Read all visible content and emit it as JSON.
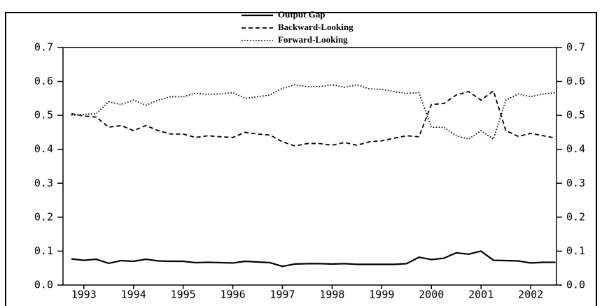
{
  "chart_data": {
    "type": "line",
    "x": [
      1992.75,
      1993,
      1993.25,
      1993.5,
      1993.75,
      1994,
      1994.25,
      1994.5,
      1994.75,
      1995,
      1995.25,
      1995.5,
      1995.75,
      1996,
      1996.25,
      1996.5,
      1996.75,
      1997,
      1997.25,
      1997.5,
      1997.75,
      1998,
      1998.25,
      1998.5,
      1998.75,
      1999,
      1999.25,
      1999.5,
      1999.75,
      2000,
      2000.25,
      2000.5,
      2000.75,
      2001,
      2001.25,
      2001.5,
      2001.75,
      2002,
      2002.25,
      2002.5
    ],
    "series": [
      {
        "name": "Output Gap",
        "color": "#000000",
        "line_style": "solid",
        "values": [
          0.077,
          0.073,
          0.076,
          0.064,
          0.072,
          0.07,
          0.076,
          0.071,
          0.07,
          0.07,
          0.066,
          0.067,
          0.066,
          0.065,
          0.07,
          0.068,
          0.066,
          0.055,
          0.062,
          0.063,
          0.063,
          0.062,
          0.063,
          0.061,
          0.061,
          0.061,
          0.061,
          0.063,
          0.082,
          0.075,
          0.079,
          0.095,
          0.091,
          0.1,
          0.073,
          0.072,
          0.071,
          0.065,
          0.067,
          0.067
        ]
      },
      {
        "name": "Backward-Looking",
        "color": "#000000",
        "line_style": "dashed",
        "values": [
          0.505,
          0.498,
          0.495,
          0.465,
          0.47,
          0.455,
          0.47,
          0.455,
          0.445,
          0.445,
          0.435,
          0.44,
          0.437,
          0.435,
          0.45,
          0.445,
          0.442,
          0.422,
          0.41,
          0.417,
          0.417,
          0.412,
          0.42,
          0.412,
          0.422,
          0.425,
          0.433,
          0.44,
          0.437,
          0.532,
          0.535,
          0.56,
          0.57,
          0.545,
          0.572,
          0.455,
          0.438,
          0.447,
          0.44,
          0.433
        ]
      },
      {
        "name": "Forward-Looking",
        "color": "#000000",
        "line_style": "dotted",
        "values": [
          0.5,
          0.503,
          0.505,
          0.54,
          0.532,
          0.545,
          0.53,
          0.545,
          0.555,
          0.555,
          0.565,
          0.562,
          0.563,
          0.567,
          0.55,
          0.555,
          0.56,
          0.58,
          0.59,
          0.585,
          0.585,
          0.59,
          0.583,
          0.59,
          0.578,
          0.577,
          0.57,
          0.565,
          0.567,
          0.465,
          0.465,
          0.44,
          0.43,
          0.455,
          0.43,
          0.545,
          0.563,
          0.555,
          0.563,
          0.567
        ]
      }
    ],
    "xlim": [
      1992.58,
      2002.52
    ],
    "xticks": [
      1993,
      1994,
      1995,
      1996,
      1997,
      1998,
      1999,
      2000,
      2001,
      2002
    ],
    "ylim": [
      0,
      0.7
    ],
    "yticks": [
      {
        "value": 0,
        "label": "0.0"
      },
      0.1,
      0.2,
      0.3,
      0.4,
      0.5,
      0.6,
      0.7
    ],
    "y2lim": [
      0,
      0.7
    ],
    "y2ticks": [
      {
        "value": 0,
        "label": "0.0"
      },
      0.1,
      0.2,
      0.3,
      0.4,
      0.5,
      0.6,
      0.7
    ],
    "legend": "top"
  }
}
